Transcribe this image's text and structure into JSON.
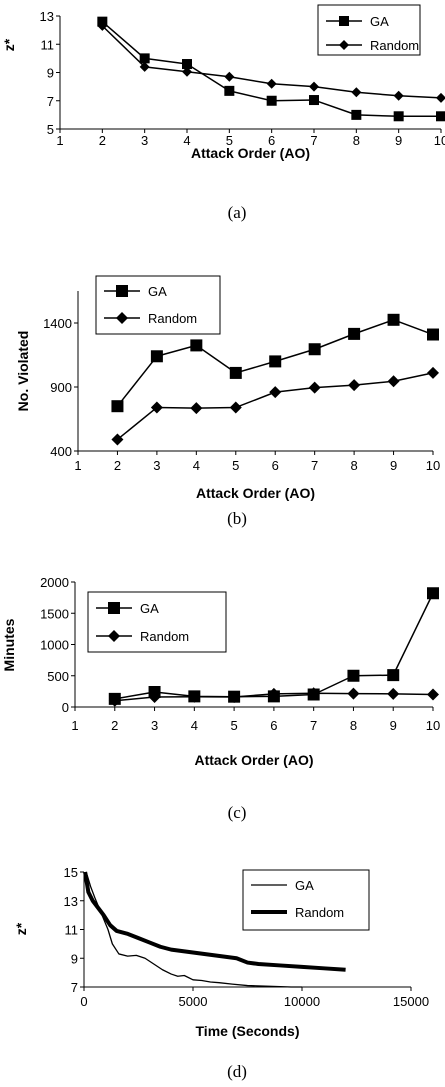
{
  "chart_data": [
    {
      "type": "line",
      "caption": "(a)",
      "xlabel": "Attack Order (AO)",
      "ylabel": "z*",
      "xlim": [
        1,
        10
      ],
      "ylim": [
        5,
        13
      ],
      "xticks": [
        "1",
        "2",
        "3",
        "4",
        "5",
        "6",
        "7",
        "8",
        "9",
        "10"
      ],
      "yticks": [
        "5",
        "7",
        "9",
        "11",
        "13"
      ],
      "legend_position": "top-right",
      "x": [
        2,
        3,
        4,
        5,
        6,
        7,
        8,
        9,
        10
      ],
      "series": [
        {
          "name": "GA",
          "marker": "square",
          "values": [
            12.6,
            10.0,
            9.6,
            7.7,
            7.0,
            7.05,
            6.0,
            5.9,
            5.9
          ]
        },
        {
          "name": "Random",
          "marker": "diamond",
          "values": [
            12.3,
            9.4,
            9.05,
            8.7,
            8.2,
            8.0,
            7.6,
            7.35,
            7.2
          ]
        }
      ]
    },
    {
      "type": "line",
      "caption": "(b)",
      "xlabel": "Attack Order (AO)",
      "ylabel": "No. Violated",
      "xlim": [
        1,
        10
      ],
      "ylim": [
        400,
        1650
      ],
      "xticks": [
        "1",
        "2",
        "3",
        "4",
        "5",
        "6",
        "7",
        "8",
        "9",
        "10"
      ],
      "yticks": [
        "400",
        "900",
        "1400"
      ],
      "legend_position": "top-left",
      "x": [
        2,
        3,
        4,
        5,
        6,
        7,
        8,
        9,
        10
      ],
      "series": [
        {
          "name": "GA",
          "marker": "square",
          "values": [
            750,
            1140,
            1225,
            1010,
            1100,
            1195,
            1315,
            1425,
            1310
          ]
        },
        {
          "name": "Random",
          "marker": "diamond",
          "values": [
            490,
            740,
            735,
            740,
            860,
            895,
            915,
            945,
            1010
          ]
        }
      ]
    },
    {
      "type": "line",
      "caption": "(c)",
      "xlabel": "Attack Order (AO)",
      "ylabel": "Minutes",
      "xlim": [
        1,
        10
      ],
      "ylim": [
        0,
        2000
      ],
      "xticks": [
        "1",
        "2",
        "3",
        "4",
        "5",
        "6",
        "7",
        "8",
        "9",
        "10"
      ],
      "yticks": [
        "0",
        "500",
        "1000",
        "1500",
        "2000"
      ],
      "legend_position": "top-left",
      "x": [
        2,
        3,
        4,
        5,
        6,
        7,
        8,
        9,
        10
      ],
      "series": [
        {
          "name": "GA",
          "marker": "square",
          "values": [
            130,
            240,
            170,
            165,
            170,
            200,
            500,
            510,
            1820
          ]
        },
        {
          "name": "Random",
          "marker": "diamond",
          "values": [
            100,
            160,
            165,
            160,
            210,
            220,
            215,
            210,
            200
          ]
        }
      ]
    },
    {
      "type": "line",
      "caption": "(d)",
      "xlabel": "Time (Seconds)",
      "ylabel": "z*",
      "xlim": [
        0,
        15000
      ],
      "ylim": [
        7,
        15
      ],
      "xticks": [
        "0",
        "5000",
        "10000",
        "15000"
      ],
      "yticks": [
        "7",
        "9",
        "11",
        "13",
        "15"
      ],
      "legend_position": "top-right",
      "series": [
        {
          "name": "GA",
          "style": "thin",
          "x": [
            100,
            300,
            500,
            800,
            1100,
            1300,
            1600,
            2000,
            2400,
            2800,
            3200,
            3600,
            4000,
            4300,
            4600,
            5000,
            5400,
            5800,
            6200,
            6800,
            7500,
            8500,
            9500,
            10000
          ],
          "y": [
            15,
            14.0,
            13.2,
            12.1,
            11.0,
            10.0,
            9.3,
            9.15,
            9.2,
            9.0,
            8.6,
            8.2,
            7.9,
            7.75,
            7.8,
            7.5,
            7.45,
            7.35,
            7.3,
            7.2,
            7.1,
            7.05,
            7.0,
            7.0
          ]
        },
        {
          "name": "Random",
          "style": "thick",
          "x": [
            50,
            200,
            400,
            600,
            900,
            1200,
            1500,
            2000,
            2500,
            3000,
            3500,
            4000,
            5000,
            6000,
            7000,
            7500,
            8000,
            9000,
            10000,
            11000,
            12000
          ],
          "y": [
            15,
            13.6,
            13.0,
            12.6,
            12.0,
            11.3,
            10.9,
            10.7,
            10.4,
            10.1,
            9.8,
            9.6,
            9.4,
            9.2,
            9.0,
            8.7,
            8.6,
            8.5,
            8.4,
            8.3,
            8.2
          ]
        }
      ]
    }
  ]
}
